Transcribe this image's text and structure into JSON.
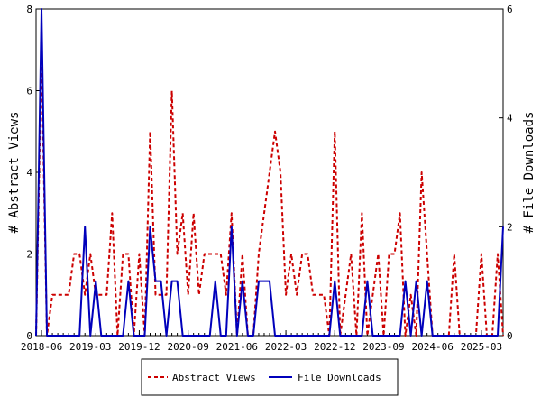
{
  "chart_data": {
    "type": "line",
    "title": "",
    "y_left": {
      "label": "# Abstract Views",
      "ticks": [
        0,
        2,
        4,
        6,
        8
      ],
      "range": [
        0,
        8
      ]
    },
    "y_right": {
      "label": "# File Downloads",
      "ticks": [
        0,
        2,
        4,
        6
      ],
      "range": [
        0,
        6
      ]
    },
    "x_ticks": [
      "2018-06",
      "2019-03",
      "2019-12",
      "2020-09",
      "2021-06",
      "2022-03",
      "2022-12",
      "2023-09",
      "2024-06",
      "2025-03"
    ],
    "x_months": [
      "2018-05",
      "2018-06",
      "2018-07",
      "2018-08",
      "2018-09",
      "2018-10",
      "2018-11",
      "2018-12",
      "2019-01",
      "2019-02",
      "2019-03",
      "2019-04",
      "2019-05",
      "2019-06",
      "2019-07",
      "2019-08",
      "2019-09",
      "2019-10",
      "2019-11",
      "2019-12",
      "2020-01",
      "2020-02",
      "2020-03",
      "2020-04",
      "2020-05",
      "2020-06",
      "2020-07",
      "2020-08",
      "2020-09",
      "2020-10",
      "2020-11",
      "2020-12",
      "2021-01",
      "2021-02",
      "2021-03",
      "2021-04",
      "2021-05",
      "2021-06",
      "2021-07",
      "2021-08",
      "2021-09",
      "2021-10",
      "2021-11",
      "2021-12",
      "2022-01",
      "2022-02",
      "2022-03",
      "2022-04",
      "2022-05",
      "2022-06",
      "2022-07",
      "2022-08",
      "2022-09",
      "2022-10",
      "2022-11",
      "2022-12",
      "2023-01",
      "2023-02",
      "2023-03",
      "2023-04",
      "2023-05",
      "2023-06",
      "2023-07",
      "2023-08",
      "2023-09",
      "2023-10",
      "2023-11",
      "2023-12",
      "2024-01",
      "2024-02",
      "2024-03",
      "2024-04",
      "2024-05",
      "2024-06",
      "2024-07",
      "2024-08",
      "2024-09",
      "2024-10",
      "2024-11",
      "2024-12",
      "2025-01",
      "2025-02",
      "2025-03",
      "2025-04",
      "2025-05",
      "2025-06",
      "2025-07"
    ],
    "series": [
      {
        "name": "Abstract Views",
        "axis": "left",
        "color": "#cc0000",
        "dash": "dashed",
        "values": [
          0,
          7,
          0,
          1,
          1,
          1,
          1,
          2,
          2,
          1,
          2,
          1,
          1,
          1,
          3,
          0,
          2,
          2,
          0,
          2,
          0,
          5,
          1,
          1,
          1,
          6,
          2,
          3,
          1,
          3,
          1,
          2,
          2,
          2,
          2,
          1,
          3,
          0,
          2,
          0,
          0,
          2,
          3,
          4,
          5,
          4,
          1,
          2,
          1,
          2,
          2,
          1,
          1,
          1,
          0,
          5,
          0,
          1,
          2,
          0,
          3,
          0,
          1,
          2,
          0,
          2,
          2,
          3,
          0,
          1,
          0,
          4,
          2,
          0,
          0,
          0,
          0,
          2,
          0,
          0,
          0,
          0,
          2,
          0,
          0,
          2,
          0
        ]
      },
      {
        "name": "File Downloads",
        "axis": "right",
        "color": "#0000bb",
        "dash": "solid",
        "values": [
          0,
          6,
          0,
          0,
          0,
          0,
          0,
          0,
          0,
          2,
          0,
          1,
          0,
          0,
          0,
          0,
          0,
          1,
          0,
          0,
          0,
          2,
          1,
          1,
          0,
          1,
          1,
          0,
          0,
          0,
          0,
          0,
          0,
          1,
          0,
          0,
          2,
          0,
          1,
          0,
          0,
          1,
          1,
          1,
          0,
          0,
          0,
          0,
          0,
          0,
          0,
          0,
          0,
          0,
          0,
          1,
          0,
          0,
          0,
          0,
          0,
          1,
          0,
          0,
          0,
          0,
          0,
          0,
          1,
          0,
          1,
          0,
          1,
          0,
          0,
          0,
          0,
          0,
          0,
          0,
          0,
          0,
          0,
          0,
          0,
          0,
          2
        ]
      }
    ],
    "legend_position": "bottom-center",
    "grid": false
  }
}
